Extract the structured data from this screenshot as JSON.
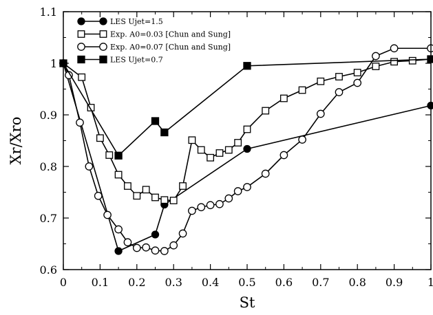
{
  "chart_data": {
    "type": "line",
    "xlabel": "St",
    "ylabel": "Xr/Xro",
    "xlim": [
      0,
      1
    ],
    "ylim": [
      0.6,
      1.1
    ],
    "xticks": [
      "0",
      "0.1",
      "0.2",
      "0.3",
      "0.4",
      "0.5",
      "0.6",
      "0.7",
      "0.8",
      "0.9",
      "1"
    ],
    "yticks": [
      "0.6",
      "0.7",
      "0.8",
      "0.9",
      "1",
      "1.1"
    ],
    "grid": false,
    "legend_position": "top-left",
    "series": [
      {
        "name": "LES Ujet=1.5",
        "marker": "filled-circle",
        "color": "#000000",
        "x": [
          0,
          0.15,
          0.25,
          0.275,
          0.5,
          1.0
        ],
        "y": [
          1.0,
          0.636,
          0.668,
          0.726,
          0.834,
          0.918
        ]
      },
      {
        "name": "Exp. A0=0.03 [Chun and Sung]",
        "marker": "open-square",
        "color": "#000000",
        "x": [
          0,
          0.05,
          0.075,
          0.1,
          0.125,
          0.15,
          0.175,
          0.2,
          0.225,
          0.25,
          0.275,
          0.3,
          0.325,
          0.35,
          0.375,
          0.4,
          0.425,
          0.45,
          0.475,
          0.5,
          0.55,
          0.6,
          0.65,
          0.7,
          0.75,
          0.8,
          0.85,
          0.9,
          0.95,
          1.0
        ],
        "y": [
          1.0,
          0.973,
          0.914,
          0.855,
          0.822,
          0.784,
          0.762,
          0.743,
          0.755,
          0.74,
          0.735,
          0.734,
          0.762,
          0.851,
          0.832,
          0.817,
          0.826,
          0.832,
          0.846,
          0.872,
          0.908,
          0.932,
          0.948,
          0.965,
          0.974,
          0.982,
          0.994,
          1.003,
          1.005,
          1.008
        ]
      },
      {
        "name": "Exp. A0=0.07 [Chun and Sung]",
        "marker": "open-circle",
        "color": "#000000",
        "x": [
          0,
          0.015,
          0.045,
          0.07,
          0.095,
          0.12,
          0.15,
          0.175,
          0.2,
          0.225,
          0.25,
          0.275,
          0.3,
          0.325,
          0.35,
          0.375,
          0.4,
          0.425,
          0.45,
          0.475,
          0.5,
          0.55,
          0.6,
          0.65,
          0.7,
          0.75,
          0.8,
          0.85,
          0.9,
          1.0
        ],
        "y": [
          1.0,
          0.977,
          0.885,
          0.8,
          0.743,
          0.706,
          0.678,
          0.653,
          0.642,
          0.643,
          0.637,
          0.636,
          0.647,
          0.67,
          0.714,
          0.721,
          0.725,
          0.727,
          0.738,
          0.752,
          0.76,
          0.786,
          0.822,
          0.852,
          0.902,
          0.944,
          0.962,
          1.014,
          1.029,
          1.029
        ]
      },
      {
        "name": "LES Ujet=0.7",
        "marker": "filled-square",
        "color": "#000000",
        "x": [
          0,
          0.15,
          0.25,
          0.275,
          0.5,
          1.0
        ],
        "y": [
          1.0,
          0.821,
          0.888,
          0.866,
          0.995,
          1.008
        ]
      }
    ]
  }
}
